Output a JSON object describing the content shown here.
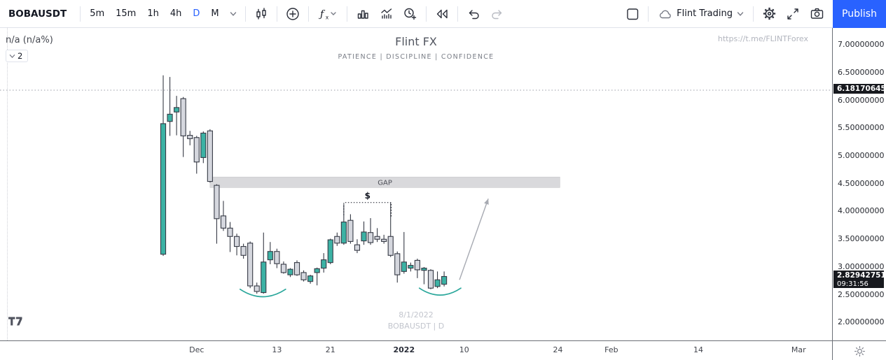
{
  "toolbar": {
    "symbol": "BOBAUSDT",
    "timeframes": [
      {
        "label": "5m",
        "active": false
      },
      {
        "label": "15m",
        "active": false
      },
      {
        "label": "1h",
        "active": false
      },
      {
        "label": "4h",
        "active": false
      },
      {
        "label": "D",
        "active": true
      },
      {
        "label": "M",
        "active": false
      }
    ],
    "account_name": "Flint Trading",
    "publish_label": "Publish"
  },
  "icons": {
    "candlestick-icon": "🕯",
    "plus-circle-icon": "⊕",
    "fx-icon": "ƒx",
    "bar-chart-icon": "▮▮▮",
    "indicators-icon": "〽",
    "alert-plus-icon": "⏰+",
    "replay-icon": "◁◁",
    "undo-icon": "↶",
    "redo-icon": "↷",
    "layout-icon": "▢",
    "cloud-icon": "☁",
    "chevron-down-icon": "⌄",
    "gear-icon": "⚙",
    "fullscreen-icon": "⤢",
    "camera-icon": "📷",
    "sun-icon": "☼",
    "tradingview-logo": "TV"
  },
  "chart_overlays": {
    "value_readout": "n/a (n/a%)",
    "collapse_count": "2",
    "watermark_title": "Flint FX",
    "watermark_subtitle": "PATIENCE | DISCIPLINE | CONFIDENCE",
    "top_right_link": "https://t.me/FLINTForex",
    "bottom_date": "8/1/2022",
    "bottom_symbol": "BOBAUSDT | D"
  },
  "price_axis": {
    "ticks": [
      {
        "price": 7.0,
        "label": "7.00000000"
      },
      {
        "price": 6.5,
        "label": "6.50000000"
      },
      {
        "price": 6.0,
        "label": "6.00000000"
      },
      {
        "price": 5.5,
        "label": "5.50000000"
      },
      {
        "price": 5.0,
        "label": "5.00000000"
      },
      {
        "price": 4.5,
        "label": "4.50000000"
      },
      {
        "price": 4.0,
        "label": "4.00000000"
      },
      {
        "price": 3.5,
        "label": "3.50000000"
      },
      {
        "price": 3.0,
        "label": "3.00000000"
      },
      {
        "price": 2.5,
        "label": "2.50000000"
      },
      {
        "price": 2.0,
        "label": "2.00000000"
      }
    ],
    "marked_price": {
      "price": 6.18170645,
      "label": "6.18170645"
    },
    "current_price": {
      "price": 2.82942751,
      "label": "2.82942751",
      "countdown": "09:31:56"
    }
  },
  "time_axis": {
    "ticks": [
      {
        "label": "Dec",
        "index": 5,
        "bold": false
      },
      {
        "label": "13",
        "index": 17,
        "bold": false
      },
      {
        "label": "21",
        "index": 25,
        "bold": false
      },
      {
        "label": "2022",
        "index": 36,
        "bold": true
      },
      {
        "label": "10",
        "index": 45,
        "bold": false
      },
      {
        "label": "24",
        "index": 59,
        "bold": false
      },
      {
        "label": "Feb",
        "index": 67,
        "bold": false
      },
      {
        "label": "14",
        "index": 80,
        "bold": false
      },
      {
        "label": "Mar",
        "index": 95,
        "bold": false
      }
    ]
  },
  "chart_data": {
    "type": "candlestick",
    "symbol": "BOBAUSDT",
    "interval": "D",
    "title": "Flint FX",
    "xlim_index": [
      -24.4,
      100.0
    ],
    "ylim_price": [
      1.679,
      7.302
    ],
    "up_color": "#3cb2a4",
    "down_color": "#d5d7de",
    "outline_color": "#363a45",
    "candles_ohlc": [
      [
        3.23,
        6.45,
        3.2,
        5.58
      ],
      [
        5.62,
        6.42,
        5.36,
        5.75
      ],
      [
        5.79,
        6.08,
        5.37,
        5.87
      ],
      [
        6.03,
        6.06,
        4.98,
        5.36
      ],
      [
        5.37,
        5.45,
        5.19,
        5.31
      ],
      [
        5.33,
        5.36,
        4.68,
        4.89
      ],
      [
        4.97,
        5.44,
        4.87,
        5.41
      ],
      [
        5.45,
        5.48,
        4.52,
        4.54
      ],
      [
        4.47,
        4.49,
        3.42,
        3.87
      ],
      [
        3.92,
        4.19,
        3.65,
        3.7
      ],
      [
        3.7,
        3.81,
        3.27,
        3.55
      ],
      [
        3.55,
        3.6,
        3.21,
        3.37
      ],
      [
        3.37,
        3.42,
        3.15,
        3.21
      ],
      [
        3.43,
        3.46,
        2.62,
        2.66
      ],
      [
        2.66,
        2.72,
        2.52,
        2.56
      ],
      [
        2.54,
        3.62,
        2.52,
        3.09
      ],
      [
        3.13,
        3.45,
        3.05,
        3.28
      ],
      [
        3.28,
        3.33,
        2.98,
        3.06
      ],
      [
        3.05,
        3.1,
        2.88,
        2.9
      ],
      [
        2.86,
        2.98,
        2.82,
        2.96
      ],
      [
        3.08,
        3.12,
        2.84,
        2.86
      ],
      [
        2.9,
        2.94,
        2.74,
        2.77
      ],
      [
        2.74,
        2.86,
        2.7,
        2.84
      ],
      [
        2.9,
        2.99,
        2.67,
        2.97
      ],
      [
        2.98,
        3.25,
        2.9,
        3.13
      ],
      [
        3.08,
        3.51,
        3.05,
        3.49
      ],
      [
        3.55,
        3.62,
        3.38,
        3.43
      ],
      [
        3.43,
        4.13,
        3.4,
        3.81
      ],
      [
        3.84,
        3.95,
        3.42,
        3.46
      ],
      [
        3.4,
        3.5,
        3.25,
        3.3
      ],
      [
        3.47,
        3.82,
        3.4,
        3.63
      ],
      [
        3.62,
        3.88,
        3.4,
        3.44
      ],
      [
        3.55,
        3.7,
        3.45,
        3.5
      ],
      [
        3.5,
        3.58,
        3.42,
        3.46
      ],
      [
        3.55,
        4.16,
        3.18,
        3.21
      ],
      [
        3.24,
        3.28,
        2.72,
        2.86
      ],
      [
        2.92,
        3.63,
        2.88,
        3.09
      ],
      [
        2.98,
        3.08,
        2.92,
        3.03
      ],
      [
        3.12,
        3.15,
        2.8,
        2.95
      ],
      [
        2.94,
        3.0,
        2.69,
        2.98
      ],
      [
        2.94,
        2.96,
        2.6,
        2.62
      ],
      [
        2.65,
        2.92,
        2.62,
        2.77
      ],
      [
        2.69,
        2.92,
        2.65,
        2.83
      ]
    ],
    "annotations": {
      "gap_zone": {
        "label": "GAP",
        "from_index": 7.0,
        "to_index": 59.3,
        "price_top": 4.62,
        "price_bottom": 4.43,
        "fill": "#d9d9dc",
        "text_color": "#4e5058"
      },
      "measure_bracket": {
        "label": "$",
        "price": 4.16,
        "from_index": 27.0,
        "to_index": 34.1,
        "color": "#131722"
      },
      "support_arcs": [
        {
          "from_index": 11.5,
          "to_index": 18.3,
          "edge_price": 2.6,
          "dip_price": 2.33,
          "color": "#2aa79b"
        },
        {
          "from_index": 38.3,
          "to_index": 44.5,
          "edge_price": 2.62,
          "dip_price": 2.37,
          "color": "#2aa79b"
        }
      ],
      "trend_arrow": {
        "from_index": 44.3,
        "from_price": 2.77,
        "to_index": 48.6,
        "to_price": 4.23,
        "color": "#a7aab2"
      },
      "dotted_price_line": {
        "price": 6.18170645,
        "color": "#9a9da6"
      }
    }
  },
  "colors": {
    "accent_blue": "#2962ff",
    "axis_line": "#6b6f76",
    "toolbar_border": "#e0e3eb",
    "text_dark": "#131722",
    "text_grey": "#787b86",
    "pill_bg": "#17191e"
  }
}
